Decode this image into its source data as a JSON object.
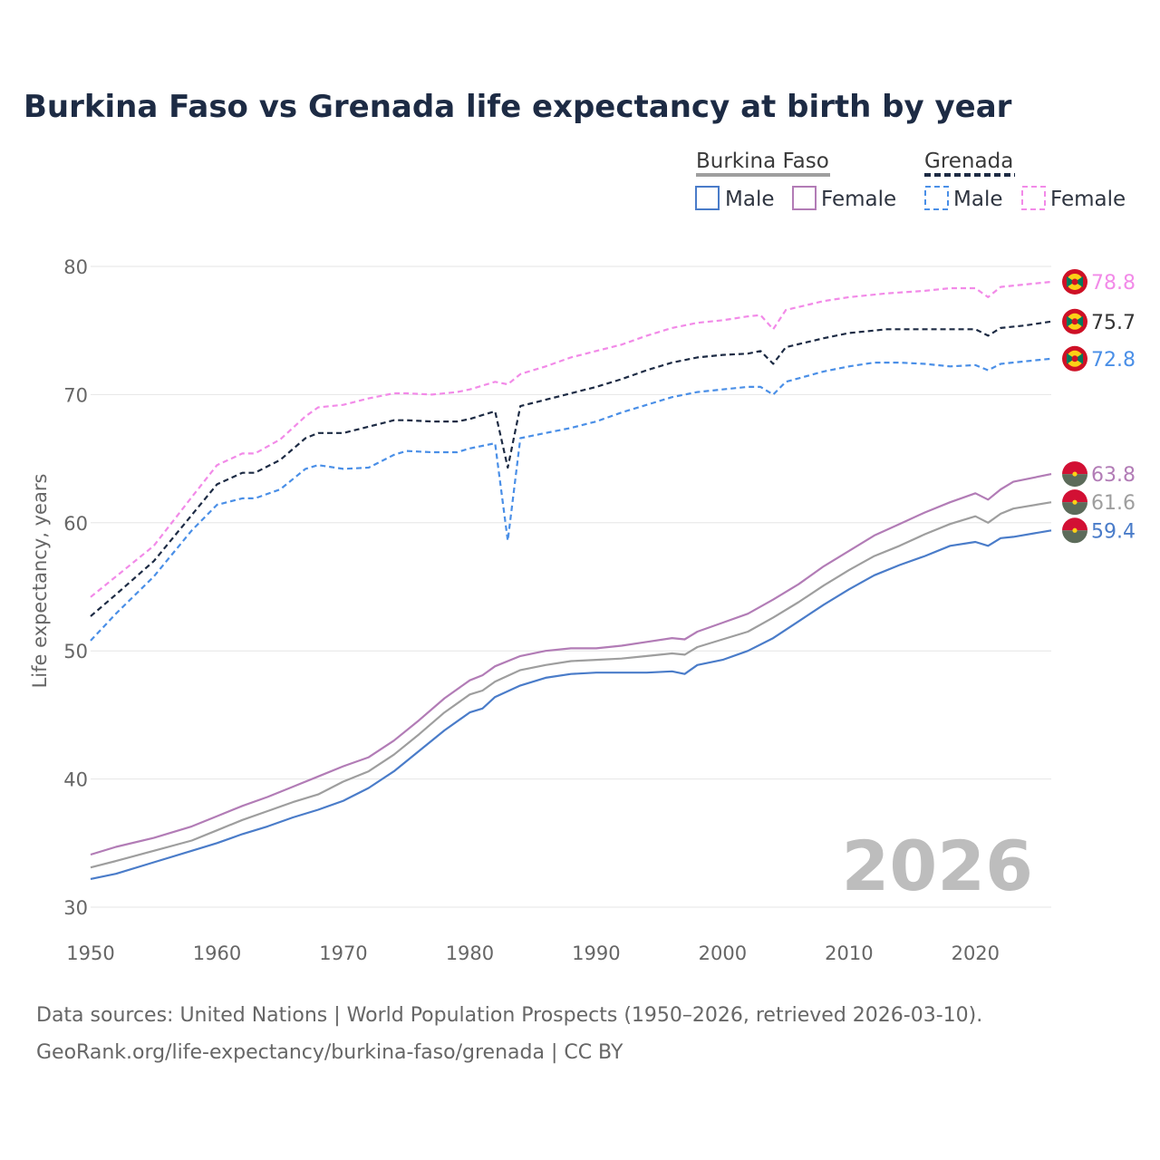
{
  "chart_data": {
    "type": "line",
    "title": "Burkina Faso vs Grenada life expectancy at birth by year",
    "ylabel": "Life expectancy, years",
    "xlabel": "",
    "xlim": [
      1950,
      2026
    ],
    "ylim": [
      30,
      80
    ],
    "x_ticks": [
      "1950",
      "1960",
      "1970",
      "1980",
      "1990",
      "2000",
      "2010",
      "2020"
    ],
    "y_ticks": [
      "30",
      "40",
      "50",
      "60",
      "70",
      "80"
    ],
    "current_year": "2026",
    "legend": {
      "groups": [
        {
          "name": "Burkina Faso",
          "items": [
            "Male",
            "Female"
          ]
        },
        {
          "name": "Grenada",
          "items": [
            "Male",
            "Female"
          ]
        }
      ]
    },
    "series": [
      {
        "name": "Grenada Female",
        "country": "Grenada",
        "sex": "Female",
        "color": "#f28ae8",
        "dash": "dashed",
        "end_label": "78.8",
        "points": [
          [
            1950,
            54.2
          ],
          [
            1952,
            55.8
          ],
          [
            1955,
            58.2
          ],
          [
            1958,
            62.0
          ],
          [
            1960,
            64.5
          ],
          [
            1962,
            65.4
          ],
          [
            1963,
            65.4
          ],
          [
            1965,
            66.5
          ],
          [
            1967,
            68.3
          ],
          [
            1968,
            69.0
          ],
          [
            1970,
            69.2
          ],
          [
            1972,
            69.7
          ],
          [
            1974,
            70.1
          ],
          [
            1975,
            70.1
          ],
          [
            1977,
            70.0
          ],
          [
            1979,
            70.2
          ],
          [
            1980,
            70.4
          ],
          [
            1982,
            71.0
          ],
          [
            1983,
            70.8
          ],
          [
            1984,
            71.6
          ],
          [
            1986,
            72.2
          ],
          [
            1988,
            72.9
          ],
          [
            1990,
            73.4
          ],
          [
            1992,
            73.9
          ],
          [
            1994,
            74.6
          ],
          [
            1996,
            75.2
          ],
          [
            1998,
            75.6
          ],
          [
            2000,
            75.8
          ],
          [
            2002,
            76.1
          ],
          [
            2003,
            76.2
          ],
          [
            2004,
            75.1
          ],
          [
            2005,
            76.6
          ],
          [
            2008,
            77.3
          ],
          [
            2010,
            77.6
          ],
          [
            2013,
            77.9
          ],
          [
            2016,
            78.1
          ],
          [
            2018,
            78.3
          ],
          [
            2020,
            78.3
          ],
          [
            2021,
            77.6
          ],
          [
            2022,
            78.4
          ],
          [
            2024,
            78.6
          ],
          [
            2026,
            78.8
          ]
        ]
      },
      {
        "name": "Grenada Total",
        "country": "Grenada",
        "sex": "Total",
        "color": "#1d2b44",
        "dash": "dashed",
        "end_label": "75.7",
        "points": [
          [
            1950,
            52.7
          ],
          [
            1952,
            54.4
          ],
          [
            1955,
            57.0
          ],
          [
            1958,
            60.6
          ],
          [
            1960,
            63.0
          ],
          [
            1962,
            63.9
          ],
          [
            1963,
            63.9
          ],
          [
            1965,
            64.9
          ],
          [
            1967,
            66.6
          ],
          [
            1968,
            67.0
          ],
          [
            1970,
            67.0
          ],
          [
            1972,
            67.5
          ],
          [
            1974,
            68.0
          ],
          [
            1975,
            68.0
          ],
          [
            1977,
            67.9
          ],
          [
            1979,
            67.9
          ],
          [
            1980,
            68.1
          ],
          [
            1982,
            68.7
          ],
          [
            1983,
            64.3
          ],
          [
            1984,
            69.1
          ],
          [
            1986,
            69.6
          ],
          [
            1988,
            70.1
          ],
          [
            1990,
            70.6
          ],
          [
            1992,
            71.2
          ],
          [
            1994,
            71.9
          ],
          [
            1996,
            72.5
          ],
          [
            1998,
            72.9
          ],
          [
            2000,
            73.1
          ],
          [
            2002,
            73.2
          ],
          [
            2003,
            73.4
          ],
          [
            2004,
            72.4
          ],
          [
            2005,
            73.7
          ],
          [
            2008,
            74.4
          ],
          [
            2010,
            74.8
          ],
          [
            2013,
            75.1
          ],
          [
            2016,
            75.1
          ],
          [
            2018,
            75.1
          ],
          [
            2020,
            75.1
          ],
          [
            2021,
            74.6
          ],
          [
            2022,
            75.2
          ],
          [
            2024,
            75.4
          ],
          [
            2026,
            75.7
          ]
        ]
      },
      {
        "name": "Grenada Male",
        "country": "Grenada",
        "sex": "Male",
        "color": "#4a8fe7",
        "dash": "dashed",
        "end_label": "72.8",
        "points": [
          [
            1950,
            50.8
          ],
          [
            1952,
            52.9
          ],
          [
            1955,
            55.8
          ],
          [
            1958,
            59.4
          ],
          [
            1960,
            61.4
          ],
          [
            1962,
            61.9
          ],
          [
            1963,
            61.9
          ],
          [
            1965,
            62.6
          ],
          [
            1967,
            64.2
          ],
          [
            1968,
            64.5
          ],
          [
            1970,
            64.2
          ],
          [
            1972,
            64.3
          ],
          [
            1974,
            65.3
          ],
          [
            1975,
            65.6
          ],
          [
            1977,
            65.5
          ],
          [
            1979,
            65.5
          ],
          [
            1980,
            65.8
          ],
          [
            1982,
            66.2
          ],
          [
            1983,
            58.6
          ],
          [
            1984,
            66.6
          ],
          [
            1986,
            67.0
          ],
          [
            1988,
            67.4
          ],
          [
            1990,
            67.9
          ],
          [
            1992,
            68.6
          ],
          [
            1994,
            69.2
          ],
          [
            1996,
            69.8
          ],
          [
            1998,
            70.2
          ],
          [
            2000,
            70.4
          ],
          [
            2002,
            70.6
          ],
          [
            2003,
            70.6
          ],
          [
            2004,
            70.0
          ],
          [
            2005,
            71.0
          ],
          [
            2008,
            71.8
          ],
          [
            2010,
            72.2
          ],
          [
            2012,
            72.5
          ],
          [
            2014,
            72.5
          ],
          [
            2016,
            72.4
          ],
          [
            2018,
            72.2
          ],
          [
            2020,
            72.3
          ],
          [
            2021,
            71.9
          ],
          [
            2022,
            72.4
          ],
          [
            2024,
            72.6
          ],
          [
            2026,
            72.8
          ]
        ]
      },
      {
        "name": "Burkina Faso Female",
        "country": "Burkina Faso",
        "sex": "Female",
        "color": "#b27cb6",
        "dash": "solid",
        "end_label": "63.8",
        "points": [
          [
            1950,
            34.1
          ],
          [
            1952,
            34.7
          ],
          [
            1955,
            35.4
          ],
          [
            1958,
            36.3
          ],
          [
            1960,
            37.1
          ],
          [
            1962,
            37.9
          ],
          [
            1964,
            38.6
          ],
          [
            1966,
            39.4
          ],
          [
            1968,
            40.2
          ],
          [
            1970,
            41.0
          ],
          [
            1972,
            41.7
          ],
          [
            1974,
            43.0
          ],
          [
            1976,
            44.6
          ],
          [
            1978,
            46.3
          ],
          [
            1980,
            47.7
          ],
          [
            1981,
            48.1
          ],
          [
            1982,
            48.8
          ],
          [
            1984,
            49.6
          ],
          [
            1986,
            50.0
          ],
          [
            1988,
            50.2
          ],
          [
            1990,
            50.2
          ],
          [
            1992,
            50.4
          ],
          [
            1994,
            50.7
          ],
          [
            1996,
            51.0
          ],
          [
            1997,
            50.9
          ],
          [
            1998,
            51.5
          ],
          [
            2000,
            52.2
          ],
          [
            2002,
            52.9
          ],
          [
            2004,
            54.0
          ],
          [
            2006,
            55.2
          ],
          [
            2008,
            56.6
          ],
          [
            2010,
            57.8
          ],
          [
            2012,
            59.0
          ],
          [
            2014,
            59.9
          ],
          [
            2016,
            60.8
          ],
          [
            2018,
            61.6
          ],
          [
            2020,
            62.3
          ],
          [
            2021,
            61.8
          ],
          [
            2022,
            62.6
          ],
          [
            2023,
            63.2
          ],
          [
            2026,
            63.8
          ]
        ]
      },
      {
        "name": "Burkina Faso Total",
        "country": "Burkina Faso",
        "sex": "Total",
        "color": "#9e9e9e",
        "dash": "solid",
        "end_label": "61.6",
        "points": [
          [
            1950,
            33.1
          ],
          [
            1952,
            33.6
          ],
          [
            1955,
            34.4
          ],
          [
            1958,
            35.2
          ],
          [
            1960,
            36.0
          ],
          [
            1962,
            36.8
          ],
          [
            1964,
            37.5
          ],
          [
            1966,
            38.2
          ],
          [
            1968,
            38.8
          ],
          [
            1970,
            39.8
          ],
          [
            1972,
            40.6
          ],
          [
            1974,
            41.9
          ],
          [
            1976,
            43.5
          ],
          [
            1978,
            45.2
          ],
          [
            1980,
            46.6
          ],
          [
            1981,
            46.9
          ],
          [
            1982,
            47.6
          ],
          [
            1984,
            48.5
          ],
          [
            1986,
            48.9
          ],
          [
            1988,
            49.2
          ],
          [
            1990,
            49.3
          ],
          [
            1992,
            49.4
          ],
          [
            1994,
            49.6
          ],
          [
            1996,
            49.8
          ],
          [
            1997,
            49.7
          ],
          [
            1998,
            50.3
          ],
          [
            2000,
            50.9
          ],
          [
            2002,
            51.5
          ],
          [
            2004,
            52.6
          ],
          [
            2006,
            53.8
          ],
          [
            2008,
            55.1
          ],
          [
            2010,
            56.3
          ],
          [
            2012,
            57.4
          ],
          [
            2014,
            58.2
          ],
          [
            2016,
            59.1
          ],
          [
            2018,
            59.9
          ],
          [
            2020,
            60.5
          ],
          [
            2021,
            60.0
          ],
          [
            2022,
            60.7
          ],
          [
            2023,
            61.1
          ],
          [
            2026,
            61.6
          ]
        ]
      },
      {
        "name": "Burkina Faso Male",
        "country": "Burkina Faso",
        "sex": "Male",
        "color": "#4a7cc9",
        "dash": "solid",
        "end_label": "59.4",
        "points": [
          [
            1950,
            32.2
          ],
          [
            1952,
            32.6
          ],
          [
            1955,
            33.5
          ],
          [
            1958,
            34.4
          ],
          [
            1960,
            35.0
          ],
          [
            1962,
            35.7
          ],
          [
            1964,
            36.3
          ],
          [
            1966,
            37.0
          ],
          [
            1968,
            37.6
          ],
          [
            1970,
            38.3
          ],
          [
            1972,
            39.3
          ],
          [
            1974,
            40.6
          ],
          [
            1976,
            42.2
          ],
          [
            1978,
            43.8
          ],
          [
            1980,
            45.2
          ],
          [
            1981,
            45.5
          ],
          [
            1982,
            46.4
          ],
          [
            1984,
            47.3
          ],
          [
            1986,
            47.9
          ],
          [
            1988,
            48.2
          ],
          [
            1990,
            48.3
          ],
          [
            1992,
            48.3
          ],
          [
            1994,
            48.3
          ],
          [
            1996,
            48.4
          ],
          [
            1997,
            48.2
          ],
          [
            1998,
            48.9
          ],
          [
            2000,
            49.3
          ],
          [
            2002,
            50.0
          ],
          [
            2004,
            51.0
          ],
          [
            2006,
            52.3
          ],
          [
            2008,
            53.6
          ],
          [
            2010,
            54.8
          ],
          [
            2012,
            55.9
          ],
          [
            2014,
            56.7
          ],
          [
            2016,
            57.4
          ],
          [
            2018,
            58.2
          ],
          [
            2020,
            58.5
          ],
          [
            2021,
            58.2
          ],
          [
            2022,
            58.8
          ],
          [
            2023,
            58.9
          ],
          [
            2026,
            59.4
          ]
        ]
      }
    ]
  },
  "footer": {
    "line1": "Data sources: United Nations | World Population Prospects (1950–2026, retrieved 2026-03-10).",
    "line2": "GeoRank.org/life-expectancy/burkina-faso/grenada | CC BY"
  }
}
